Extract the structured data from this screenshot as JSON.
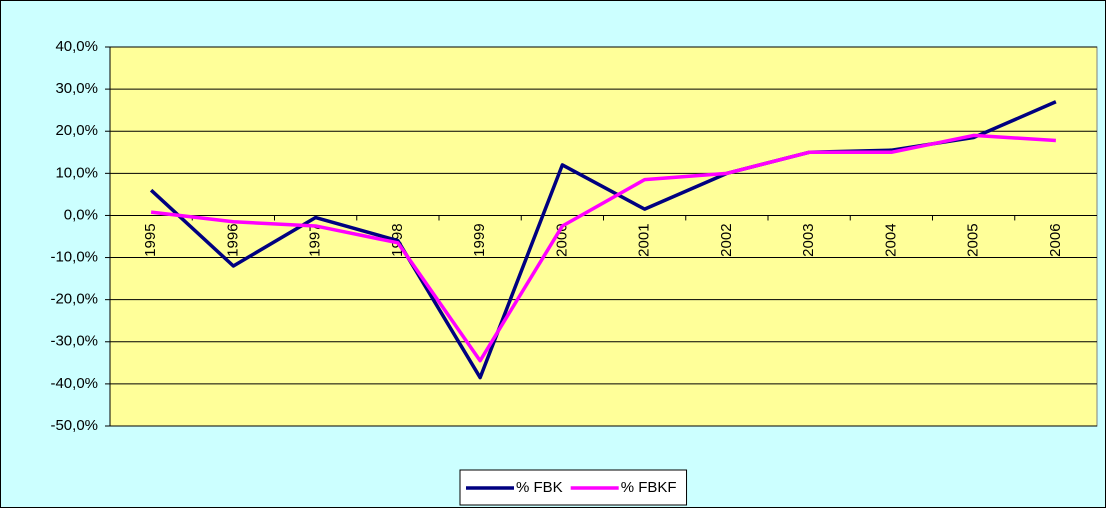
{
  "chart_data": {
    "type": "line",
    "categories": [
      "1995",
      "1996",
      "1997",
      "1998",
      "1999",
      "2000",
      "2001",
      "2002",
      "2003",
      "2004",
      "2005",
      "2006"
    ],
    "series": [
      {
        "name": "% FBK",
        "color": "#000080",
        "values": [
          6,
          -12,
          -0.5,
          -6,
          -38.5,
          12,
          1.5,
          10,
          15,
          15.5,
          18.5,
          27
        ]
      },
      {
        "name": "% FBKF",
        "color": "#ff00ff",
        "values": [
          0.8,
          -1.5,
          -2.5,
          -6.5,
          -34.5,
          -2.5,
          8.5,
          10,
          15,
          15,
          19,
          17.8
        ]
      }
    ],
    "ylim": [
      -50,
      40
    ],
    "yticks": [
      {
        "value": -50,
        "label": "-50,0%"
      },
      {
        "value": -40,
        "label": "-40,0%"
      },
      {
        "value": -30,
        "label": "-30,0%"
      },
      {
        "value": -20,
        "label": "-20,0%"
      },
      {
        "value": -10,
        "label": "-10,0%"
      },
      {
        "value": 0,
        "label": "0,0%"
      },
      {
        "value": 10,
        "label": "10,0%"
      },
      {
        "value": 20,
        "label": "20,0%"
      },
      {
        "value": 30,
        "label": "30,0%"
      },
      {
        "value": 40,
        "label": "40,0%"
      }
    ],
    "grid": true,
    "legend": "bottom"
  }
}
